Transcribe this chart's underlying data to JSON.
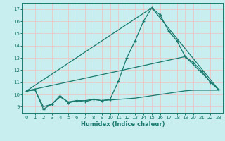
{
  "xlabel": "Humidex (Indice chaleur)",
  "bg_color": "#c8eef0",
  "line_color": "#1a7a6e",
  "grid_color": "#e8c8c8",
  "xlim": [
    -0.5,
    23.5
  ],
  "ylim": [
    8.5,
    17.5
  ],
  "yticks": [
    9,
    10,
    11,
    12,
    13,
    14,
    15,
    16,
    17
  ],
  "xticks": [
    0,
    1,
    2,
    3,
    4,
    5,
    6,
    7,
    8,
    9,
    10,
    11,
    12,
    13,
    14,
    15,
    16,
    17,
    18,
    19,
    20,
    21,
    22,
    23
  ],
  "line_main": {
    "x": [
      0,
      1,
      2,
      3,
      4,
      5,
      6,
      7,
      8,
      9,
      10,
      11,
      12,
      13,
      14,
      15,
      16,
      17,
      18,
      19,
      20,
      21,
      22,
      23
    ],
    "y": [
      10.3,
      10.4,
      8.8,
      9.2,
      9.9,
      9.3,
      9.5,
      9.4,
      9.6,
      9.5,
      9.6,
      11.1,
      13.0,
      14.4,
      16.0,
      17.1,
      16.5,
      15.2,
      14.4,
      13.1,
      12.6,
      11.9,
      11.0,
      10.4
    ]
  },
  "line_flat": {
    "x": [
      0,
      1,
      2,
      3,
      4,
      5,
      6,
      7,
      8,
      9,
      10,
      11,
      12,
      13,
      14,
      15,
      16,
      17,
      18,
      19,
      20,
      21,
      22,
      23
    ],
    "y": [
      10.3,
      10.35,
      9.0,
      9.2,
      9.8,
      9.4,
      9.5,
      9.5,
      9.6,
      9.5,
      9.55,
      9.6,
      9.65,
      9.7,
      9.8,
      9.9,
      10.0,
      10.1,
      10.2,
      10.3,
      10.35,
      10.35,
      10.35,
      10.35
    ]
  },
  "line_diag1": {
    "x": [
      0,
      15,
      23
    ],
    "y": [
      10.3,
      17.1,
      10.4
    ]
  },
  "line_diag2": {
    "x": [
      0,
      19,
      23
    ],
    "y": [
      10.3,
      13.1,
      10.4
    ]
  }
}
